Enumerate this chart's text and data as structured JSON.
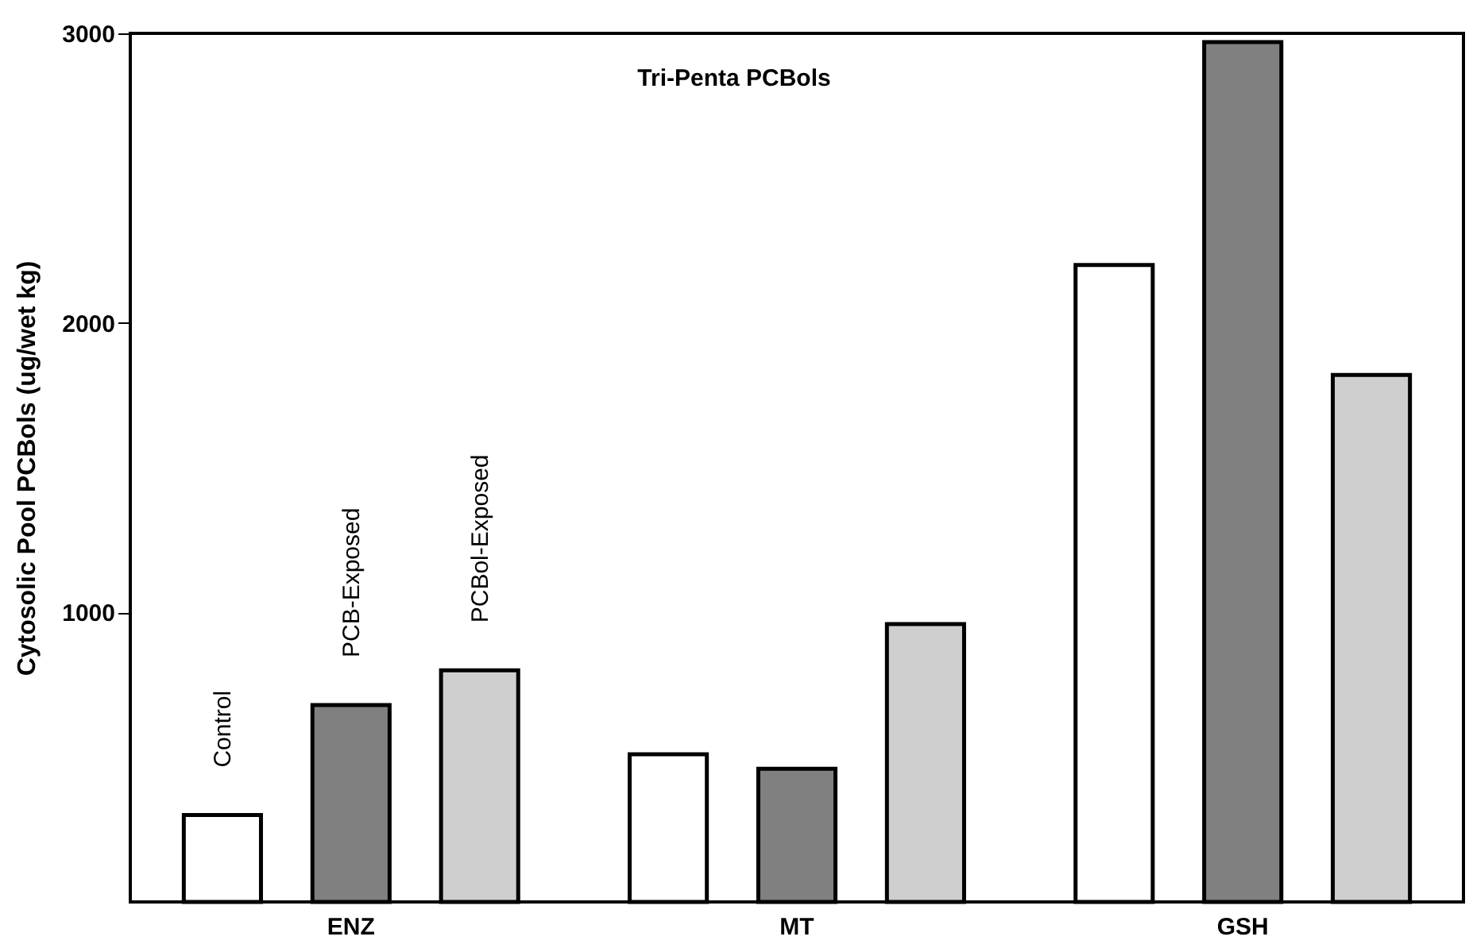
{
  "chart_data": {
    "type": "bar",
    "title": "Tri-Penta PCBols",
    "ylabel": "Cytosolic Pool PCBols (ug/wet kg)",
    "categories": [
      "ENZ",
      "MT",
      "GSH"
    ],
    "series": [
      {
        "name": "Control",
        "color": "#ffffff",
        "values": [
          300,
          510,
          2200
        ]
      },
      {
        "name": "PCB-Exposed",
        "color": "#808080",
        "values": [
          680,
          460,
          2970
        ]
      },
      {
        "name": "PCBol-Exposed",
        "color": "#cfcfcf",
        "values": [
          800,
          960,
          1820
        ]
      }
    ],
    "ylim": [
      0,
      3000
    ],
    "yticks": [
      1000,
      2000,
      3000
    ],
    "grid": false
  }
}
